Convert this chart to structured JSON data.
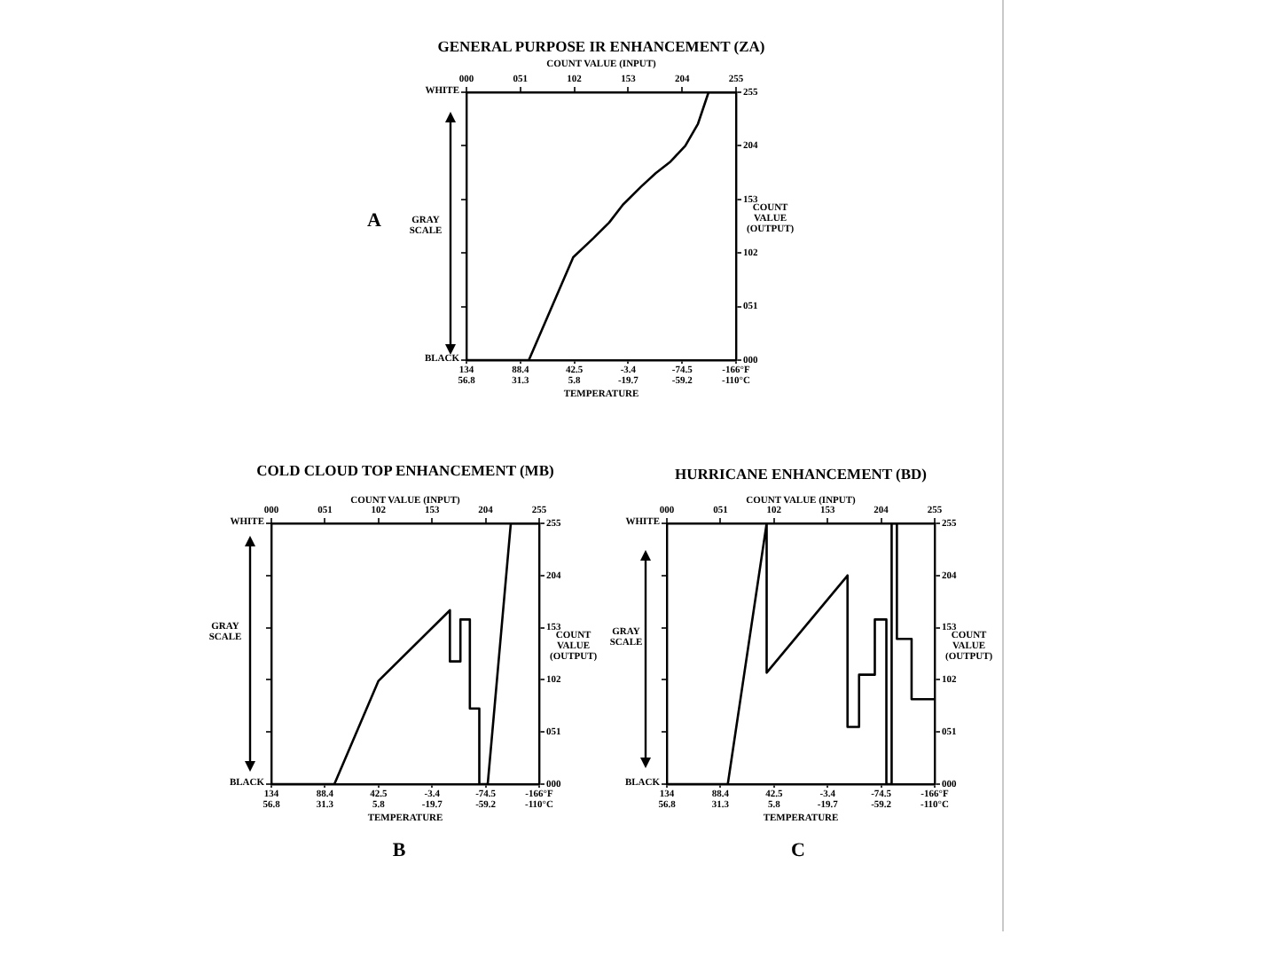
{
  "chart_data": [
    {
      "type": "line",
      "title": "GENERAL PURPOSE IR ENHANCEMENT (ZA)",
      "xlabel": "COUNT VALUE (INPUT)",
      "ylabel": "COUNT VALUE (OUTPUT)",
      "annotations": [
        "A",
        "GRAY SCALE",
        "WHITE",
        "BLACK",
        "TEMPERATURE",
        "134\n56.8",
        "88.4\n31.3",
        "42.5\n5.8",
        "-3.4\n-19.7",
        "-74.5\n-59.2",
        "-166°F\n-110°C"
      ],
      "xlim": [
        0,
        255
      ],
      "xticks": [
        {
          "value": 0,
          "label": "000"
        },
        {
          "value": 51,
          "label": "051"
        },
        {
          "value": 102,
          "label": "102"
        },
        {
          "value": 153,
          "label": "153"
        },
        {
          "value": 204,
          "label": "204"
        },
        {
          "value": 255,
          "label": "255"
        }
      ],
      "ylim": [
        0,
        255
      ],
      "yticks": [
        {
          "value": 0,
          "label": "000"
        },
        {
          "value": 51,
          "label": "051"
        },
        {
          "value": 102,
          "label": "102"
        },
        {
          "value": 153,
          "label": "153"
        },
        {
          "value": 204,
          "label": "204"
        },
        {
          "value": 255,
          "label": "255"
        }
      ],
      "marker": "none",
      "line_style": "solid",
      "series": [
        {
          "color": "#000000",
          "x": [
            0,
            59,
            101,
            120,
            135,
            148,
            165,
            179,
            193,
            207,
            219,
            229,
            255
          ],
          "values": [
            0,
            0,
            98,
            116,
            131,
            148,
            165,
            178,
            189,
            204,
            225,
            255,
            255
          ]
        }
      ]
    },
    {
      "type": "line",
      "title": "COLD CLOUD TOP ENHANCEMENT (MB)",
      "xlabel": "COUNT VALUE (INPUT)",
      "ylabel": "COUNT VALUE (OUTPUT)",
      "annotations": [
        "B",
        "GRAY SCALE",
        "WHITE",
        "BLACK",
        "TEMPERATURE",
        "134\n56.8",
        "88.4\n31.3",
        "42.5\n5.8",
        "-3.4\n-19.7",
        "-74.5\n-59.2",
        "-166°F\n-110°C"
      ],
      "xlim": [
        0,
        255
      ],
      "xticks": [
        {
          "value": 0,
          "label": "000"
        },
        {
          "value": 51,
          "label": "051"
        },
        {
          "value": 102,
          "label": "102"
        },
        {
          "value": 153,
          "label": "153"
        },
        {
          "value": 204,
          "label": "204"
        },
        {
          "value": 255,
          "label": "255"
        }
      ],
      "ylim": [
        0,
        255
      ],
      "yticks": [
        {
          "value": 0,
          "label": "000"
        },
        {
          "value": 51,
          "label": "051"
        },
        {
          "value": 102,
          "label": "102"
        },
        {
          "value": 153,
          "label": "153"
        },
        {
          "value": 204,
          "label": "204"
        },
        {
          "value": 255,
          "label": "255"
        }
      ],
      "marker": "none",
      "line_style": "solid",
      "series": [
        {
          "color": "#000000",
          "x": [
            0,
            60,
            102,
            170,
            170,
            180,
            180,
            189,
            189,
            198,
            198,
            206,
            228,
            255
          ],
          "values": [
            0,
            0,
            101,
            170,
            120,
            120,
            161,
            161,
            74,
            74,
            0,
            0,
            255,
            255
          ]
        }
      ]
    },
    {
      "type": "line",
      "title": "HURRICANE ENHANCEMENT (BD)",
      "xlabel": "COUNT VALUE (INPUT)",
      "ylabel": "COUNT VALUE (OUTPUT)",
      "annotations": [
        "C",
        "GRAY SCALE",
        "WHITE",
        "BLACK",
        "TEMPERATURE",
        "134\n56.8",
        "88.4\n31.3",
        "42.5\n5.8",
        "-3.4\n-19.7",
        "-74.5\n-59.2",
        "-166°F\n-110°C"
      ],
      "xlim": [
        0,
        255
      ],
      "xticks": [
        {
          "value": 0,
          "label": "000"
        },
        {
          "value": 51,
          "label": "051"
        },
        {
          "value": 102,
          "label": "102"
        },
        {
          "value": 153,
          "label": "153"
        },
        {
          "value": 204,
          "label": "204"
        },
        {
          "value": 255,
          "label": "255"
        }
      ],
      "ylim": [
        0,
        255
      ],
      "yticks": [
        {
          "value": 0,
          "label": "000"
        },
        {
          "value": 51,
          "label": "051"
        },
        {
          "value": 102,
          "label": "102"
        },
        {
          "value": 153,
          "label": "153"
        },
        {
          "value": 204,
          "label": "204"
        },
        {
          "value": 255,
          "label": "255"
        }
      ],
      "marker": "none",
      "line_style": "solid",
      "series": [
        {
          "color": "#000000",
          "x": [
            0,
            58,
            95,
            95,
            172,
            172,
            183,
            183,
            198,
            198,
            209,
            209,
            214,
            214,
            219,
            219,
            233,
            233,
            255
          ],
          "values": [
            0,
            0,
            255,
            109,
            204,
            56,
            56,
            107,
            107,
            161,
            161,
            0,
            0,
            255,
            255,
            142,
            142,
            83,
            83
          ]
        }
      ]
    }
  ]
}
